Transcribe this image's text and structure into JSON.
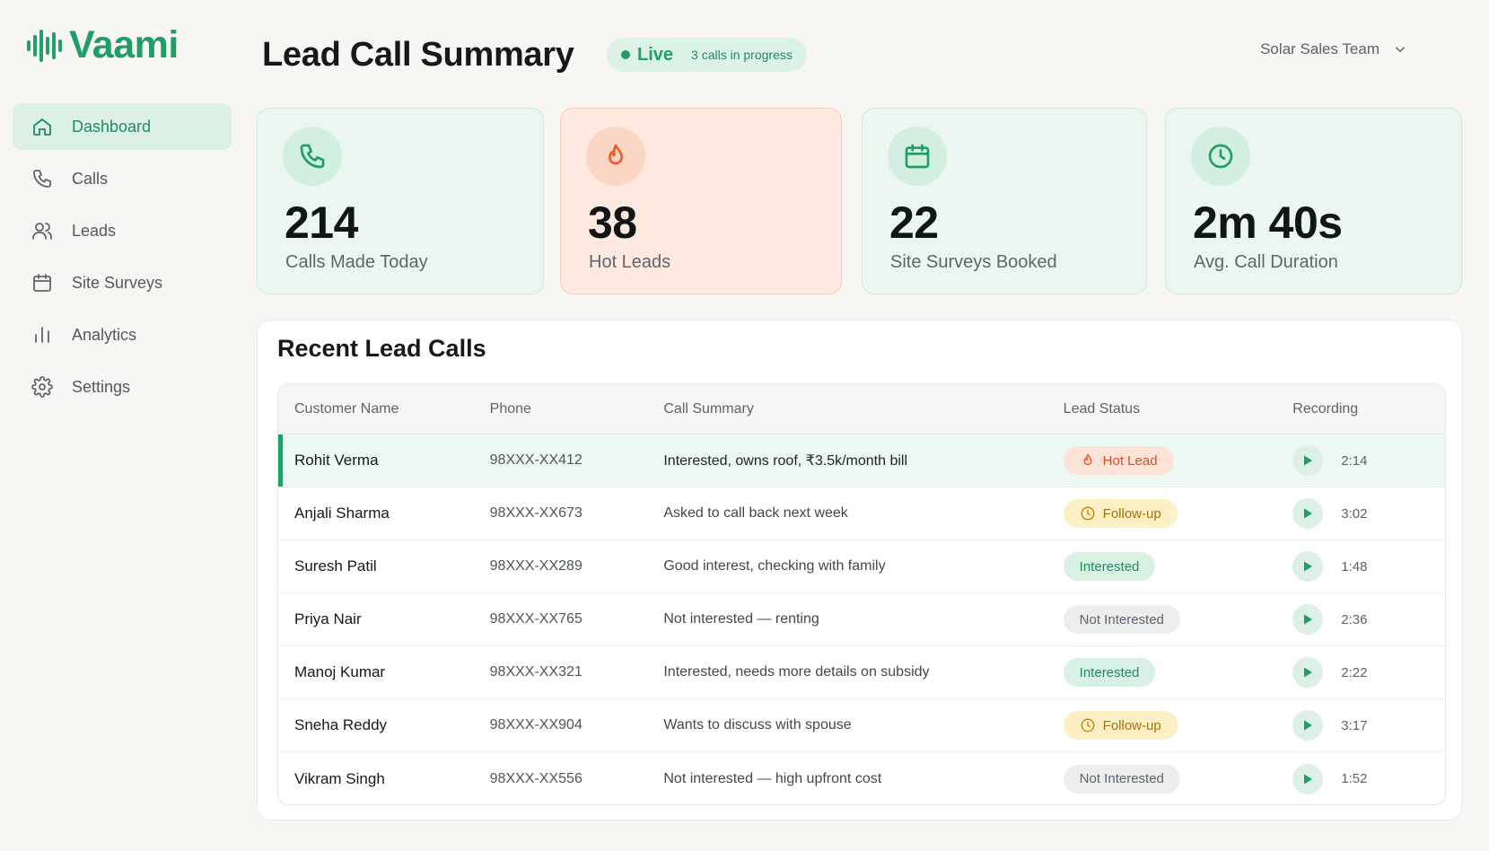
{
  "app": {
    "name": "Vaami"
  },
  "sidebar": {
    "items": [
      {
        "label": "Dashboard",
        "icon": "home-icon",
        "active": true
      },
      {
        "label": "Calls",
        "icon": "phone-icon",
        "active": false
      },
      {
        "label": "Leads",
        "icon": "users-icon",
        "active": false
      },
      {
        "label": "Site Surveys",
        "icon": "calendar-icon",
        "active": false
      },
      {
        "label": "Analytics",
        "icon": "bar-chart-icon",
        "active": false
      },
      {
        "label": "Settings",
        "icon": "gear-icon",
        "active": false
      }
    ]
  },
  "header": {
    "title": "Lead Call Summary",
    "live_label": "Live",
    "live_sub": "3 calls in progress",
    "team": "Solar Sales Team"
  },
  "stats": [
    {
      "value": "214",
      "label": "Calls Made Today",
      "icon": "phone-icon"
    },
    {
      "value": "38",
      "label": "Hot Leads",
      "icon": "flame-icon"
    },
    {
      "value": "22",
      "label": "Site Surveys Booked",
      "icon": "calendar-icon"
    },
    {
      "value": "2m 40s",
      "label": "Avg. Call Duration",
      "icon": "clock-icon"
    }
  ],
  "recent": {
    "title": "Recent Lead Calls",
    "columns": [
      "Customer Name",
      "Phone",
      "Call Summary",
      "Lead Status",
      "Recording"
    ],
    "rows": [
      {
        "name": "Rohit Verma",
        "phone": "98XXX-XX412",
        "summary": "Interested, owns roof, ₹3.5k/month bill",
        "status": "Hot Lead",
        "duration": "2:14"
      },
      {
        "name": "Anjali Sharma",
        "phone": "98XXX-XX673",
        "summary": "Asked to call back next week",
        "status": "Follow-up",
        "duration": "3:02"
      },
      {
        "name": "Suresh Patil",
        "phone": "98XXX-XX289",
        "summary": "Good interest, checking with family",
        "status": "Interested",
        "duration": "1:48"
      },
      {
        "name": "Priya Nair",
        "phone": "98XXX-XX765",
        "summary": "Not interested — renting",
        "status": "Not Interested",
        "duration": "2:36"
      },
      {
        "name": "Manoj Kumar",
        "phone": "98XXX-XX321",
        "summary": "Interested, needs more details on subsidy",
        "status": "Interested",
        "duration": "2:22"
      },
      {
        "name": "Sneha Reddy",
        "phone": "98XXX-XX904",
        "summary": "Wants to discuss with spouse",
        "status": "Follow-up",
        "duration": "3:17"
      },
      {
        "name": "Vikram Singh",
        "phone": "98XXX-XX556",
        "summary": "Not interested — high upfront cost",
        "status": "Not Interested",
        "duration": "1:52"
      }
    ]
  },
  "colors": {
    "brand": "#1f9e68",
    "hot": "#f05a2a",
    "follow_up": "#c48a12",
    "neutral": "#5b646c"
  }
}
